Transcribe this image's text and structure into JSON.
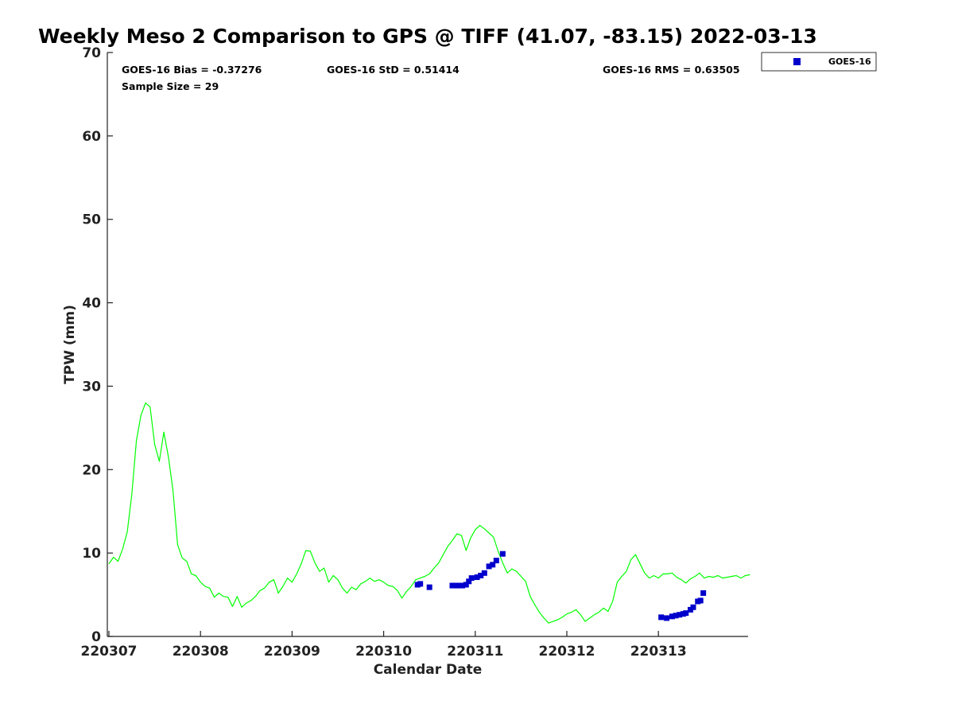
{
  "chart_data": {
    "type": "scatter",
    "title": "Weekly Meso 2 Comparison to GPS @ TIFF (41.07, -83.15) 2022-03-13",
    "xlabel": "Calendar Date",
    "ylabel": "TPW (mm)",
    "xlim": [
      0,
      7
    ],
    "ylim": [
      0,
      70
    ],
    "x_ticks": [
      0,
      1,
      2,
      3,
      4,
      5,
      6
    ],
    "x_tick_labels": [
      "220307",
      "220308",
      "220309",
      "220310",
      "220311",
      "220312",
      "220313"
    ],
    "y_ticks": [
      0,
      10,
      20,
      30,
      40,
      50,
      60,
      70
    ],
    "y_tick_labels": [
      "0",
      "10",
      "20",
      "30",
      "40",
      "50",
      "60",
      "70"
    ],
    "grid": false,
    "legend_position": "top-right outside",
    "stats": {
      "bias": "GOES-16 Bias = -0.37276",
      "std": "GOES-16 StD = 0.51414",
      "rms": "GOES-16 RMS = 0.63505",
      "sample": "Sample Size = 29"
    },
    "series": [
      {
        "name": "GOES-16",
        "type": "scatter",
        "color": "#0000cc",
        "marker": "square",
        "x": [
          3.37,
          3.4,
          3.5,
          3.75,
          3.79,
          3.82,
          3.86,
          3.9,
          3.93,
          3.96,
          4.02,
          4.06,
          4.1,
          4.15,
          4.19,
          4.23,
          4.3,
          6.03,
          6.09,
          6.15,
          6.19,
          6.23,
          6.27,
          6.3,
          6.35,
          6.38,
          6.43,
          6.46,
          6.49
        ],
        "y": [
          6.2,
          6.3,
          5.9,
          6.1,
          6.1,
          6.1,
          6.1,
          6.2,
          6.6,
          7.0,
          7.1,
          7.3,
          7.6,
          8.4,
          8.6,
          9.1,
          9.9,
          2.3,
          2.2,
          2.4,
          2.5,
          2.6,
          2.7,
          2.8,
          3.2,
          3.5,
          4.2,
          4.3,
          5.2
        ]
      },
      {
        "name": "GPS",
        "type": "line",
        "color": "#00ff00",
        "x": [
          0.0,
          0.05,
          0.1,
          0.15,
          0.2,
          0.25,
          0.3,
          0.35,
          0.4,
          0.45,
          0.5,
          0.55,
          0.6,
          0.65,
          0.7,
          0.75,
          0.8,
          0.85,
          0.9,
          0.95,
          1.0,
          1.05,
          1.1,
          1.15,
          1.2,
          1.25,
          1.3,
          1.35,
          1.4,
          1.45,
          1.5,
          1.55,
          1.6,
          1.65,
          1.7,
          1.75,
          1.8,
          1.85,
          1.9,
          1.95,
          2.0,
          2.05,
          2.1,
          2.15,
          2.2,
          2.25,
          2.3,
          2.35,
          2.4,
          2.45,
          2.5,
          2.55,
          2.6,
          2.65,
          2.7,
          2.75,
          2.8,
          2.85,
          2.9,
          2.95,
          3.0,
          3.05,
          3.1,
          3.15,
          3.2,
          3.25,
          3.3,
          3.35,
          3.4,
          3.45,
          3.5,
          3.55,
          3.6,
          3.65,
          3.7,
          3.75,
          3.8,
          3.85,
          3.9,
          3.95,
          4.0,
          4.05,
          4.1,
          4.15,
          4.2,
          4.25,
          4.3,
          4.35,
          4.4,
          4.45,
          4.5,
          4.55,
          4.6,
          4.65,
          4.7,
          4.75,
          4.8,
          4.85,
          4.9,
          4.95,
          5.0,
          5.05,
          5.1,
          5.15,
          5.2,
          5.25,
          5.3,
          5.35,
          5.4,
          5.45,
          5.5,
          5.55,
          5.6,
          5.65,
          5.7,
          5.75,
          5.8,
          5.85,
          5.9,
          5.95,
          6.0,
          6.05,
          6.1,
          6.15,
          6.2,
          6.25,
          6.3,
          6.35,
          6.4,
          6.45,
          6.5,
          6.55,
          6.6,
          6.65,
          6.7,
          6.75,
          6.8,
          6.85,
          6.9,
          6.95,
          7.0
        ],
        "y": [
          8.7,
          9.5,
          9.0,
          10.5,
          12.5,
          17.0,
          23.5,
          26.5,
          28.0,
          27.5,
          23.0,
          21.0,
          24.5,
          21.5,
          17.5,
          11.0,
          9.4,
          9.0,
          7.5,
          7.3,
          6.5,
          6.0,
          5.8,
          4.7,
          5.2,
          4.8,
          4.7,
          3.6,
          4.8,
          3.5,
          4.0,
          4.3,
          4.8,
          5.5,
          5.8,
          6.5,
          6.8,
          5.2,
          6.0,
          7.0,
          6.5,
          7.5,
          8.7,
          10.3,
          10.2,
          8.8,
          7.8,
          8.2,
          6.5,
          7.3,
          6.8,
          5.8,
          5.2,
          5.9,
          5.6,
          6.3,
          6.6,
          7.0,
          6.6,
          6.8,
          6.5,
          6.1,
          6.0,
          5.5,
          4.6,
          5.4,
          6.0,
          6.8,
          7.0,
          7.2,
          7.5,
          8.2,
          8.8,
          9.8,
          10.8,
          11.5,
          12.3,
          12.1,
          10.3,
          11.8,
          12.8,
          13.3,
          12.9,
          12.4,
          11.9,
          10.2,
          8.8,
          7.6,
          8.1,
          7.8,
          7.2,
          6.6,
          4.8,
          3.8,
          2.9,
          2.2,
          1.6,
          1.8,
          2.0,
          2.3,
          2.7,
          2.9,
          3.2,
          2.6,
          1.8,
          2.2,
          2.6,
          2.9,
          3.4,
          3.0,
          4.2,
          6.5,
          7.2,
          7.8,
          9.2,
          9.8,
          8.7,
          7.6,
          7.0,
          7.3,
          7.0,
          7.5,
          7.5,
          7.6,
          7.1,
          6.8,
          6.4,
          6.9,
          7.2,
          7.6,
          7.0,
          7.2,
          7.1,
          7.3,
          7.0,
          7.1,
          7.2,
          7.3,
          7.0,
          7.3,
          7.4
        ]
      }
    ]
  }
}
